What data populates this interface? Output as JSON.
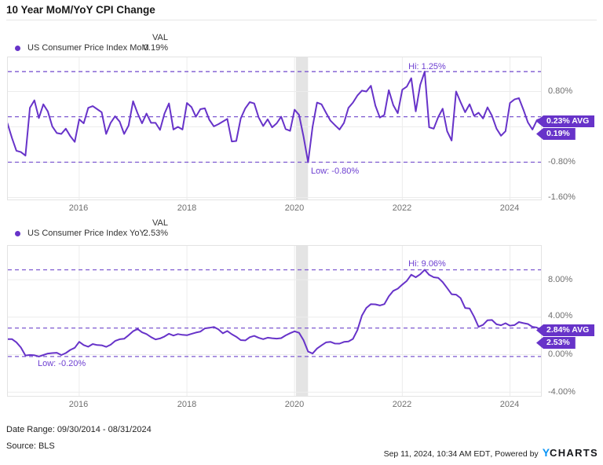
{
  "title": "10 Year MoM/YoY CPI Change",
  "colors": {
    "line": "#6733c9",
    "dashed": "#7d58d0",
    "annotation": "#6d3fd1",
    "badge_bg": "#6733c9",
    "grid": "#ececec",
    "plot_border": "#e3e3e3",
    "recession_band": "#e4e4e4",
    "axis_text": "#6f6f6f",
    "logo_blue": "#0994f6"
  },
  "charts": [
    {
      "val_header": "VAL",
      "legend_label": "US Consumer Price Index MoM",
      "legend_value": "0.19%",
      "hi_label": "Hi: 1.25%",
      "low_label": "Low: -0.80%",
      "avg_badge": "0.23% AVG",
      "value_badge": "0.19%",
      "y_axis_labels": [
        "0.80%",
        "-0.80%",
        "-1.60%"
      ],
      "x_axis_labels": [
        "2016",
        "2018",
        "2020",
        "2022",
        "2024"
      ]
    },
    {
      "val_header": "VAL",
      "legend_label": "US Consumer Price Index YoY",
      "legend_value": "2.53%",
      "hi_label": "Hi: 9.06%",
      "low_label": "Low: -0.20%",
      "avg_badge": "2.84% AVG",
      "value_badge": "2.53%",
      "y_axis_labels": [
        "8.00%",
        "4.00%",
        "0.00%",
        "-4.00%"
      ],
      "x_axis_labels": [
        "2016",
        "2018",
        "2020",
        "2022",
        "2024"
      ]
    }
  ],
  "footer": {
    "date_range": "Date Range: 09/30/2014 - 08/31/2024",
    "source": "Source: BLS",
    "timestamp": "Sep 11, 2024, 10:34 AM EDT",
    "powered_by": "Powered by",
    "logo_y": "Y",
    "logo_charts": "CHARTS"
  },
  "chart_data": [
    {
      "type": "line",
      "title": "US Consumer Price Index MoM",
      "unit": "%",
      "frequency": "monthly",
      "x_start": "2014-09",
      "x_end": "2024-08",
      "hi": 1.25,
      "low": -0.8,
      "avg": 0.23,
      "last": 0.19,
      "ylim": [
        -1.653,
        1.582
      ],
      "y_gridlines": [
        0.8,
        0,
        -0.8,
        -1.6
      ],
      "x_gridline_years": [
        2016,
        2018,
        2020,
        2022,
        2024
      ],
      "recession_band": {
        "from": "2020-02",
        "to": "2020-04"
      },
      "values": [
        0.08,
        -0.25,
        -0.54,
        -0.57,
        -0.65,
        0.43,
        0.6,
        0.2,
        0.51,
        0.35,
        0.01,
        -0.14,
        -0.16,
        -0.04,
        -0.21,
        -0.34,
        0.17,
        0.08,
        0.43,
        0.47,
        0.4,
        0.33,
        -0.16,
        0.09,
        0.24,
        0.12,
        -0.16,
        0.03,
        0.58,
        0.31,
        0.08,
        0.3,
        0.09,
        0.09,
        -0.07,
        0.3,
        0.53,
        -0.06,
        0.0,
        -0.06,
        0.54,
        0.45,
        0.23,
        0.4,
        0.42,
        0.16,
        0.01,
        0.06,
        0.12,
        0.18,
        -0.33,
        -0.32,
        0.19,
        0.42,
        0.56,
        0.53,
        0.21,
        0.02,
        0.17,
        -0.01,
        0.08,
        0.23,
        -0.05,
        -0.09,
        0.39,
        0.27,
        -0.22,
        -0.8,
        0.0,
        0.55,
        0.51,
        0.32,
        0.14,
        0.04,
        -0.06,
        0.09,
        0.43,
        0.55,
        0.71,
        0.82,
        0.8,
        0.93,
        0.48,
        0.21,
        0.27,
        0.83,
        0.49,
        0.31,
        0.84,
        0.91,
        1.1,
        0.35,
        0.95,
        1.25,
        -0.01,
        -0.04,
        0.22,
        0.41,
        -0.1,
        -0.31,
        0.8,
        0.56,
        0.33,
        0.51,
        0.25,
        0.32,
        0.19,
        0.44,
        0.25,
        -0.04,
        -0.2,
        -0.1,
        0.54,
        0.62,
        0.65,
        0.39,
        0.1,
        -0.06,
        0.15,
        0.19
      ]
    },
    {
      "type": "line",
      "title": "US Consumer Price Index YoY",
      "unit": "%",
      "frequency": "monthly",
      "x_start": "2014-09",
      "x_end": "2024-08",
      "hi": 9.06,
      "low": -0.2,
      "avg": 2.84,
      "last": 2.53,
      "ylim": [
        -4.445,
        11.656
      ],
      "y_gridlines": [
        8,
        4,
        0,
        -4
      ],
      "x_gridline_years": [
        2016,
        2018,
        2020,
        2022,
        2024
      ],
      "recession_band": {
        "from": "2020-02",
        "to": "2020-04"
      },
      "values": [
        1.66,
        1.66,
        1.32,
        0.76,
        -0.09,
        -0.03,
        -0.07,
        -0.2,
        -0.04,
        0.12,
        0.17,
        0.2,
        -0.04,
        0.17,
        0.5,
        0.73,
        1.37,
        1.02,
        0.85,
        1.13,
        1.02,
        1.0,
        0.83,
        1.06,
        1.46,
        1.64,
        1.69,
        2.07,
        2.5,
        2.74,
        2.38,
        2.2,
        1.87,
        1.63,
        1.73,
        1.94,
        2.23,
        2.04,
        2.2,
        2.11,
        2.07,
        2.21,
        2.36,
        2.46,
        2.8,
        2.87,
        2.95,
        2.7,
        2.28,
        2.52,
        2.18,
        1.91,
        1.55,
        1.52,
        1.86,
        2.0,
        1.79,
        1.65,
        1.81,
        1.75,
        1.71,
        1.76,
        2.05,
        2.29,
        2.49,
        2.33,
        1.54,
        0.33,
        0.12,
        0.65,
        0.99,
        1.31,
        1.37,
        1.18,
        1.17,
        1.36,
        1.4,
        1.68,
        2.62,
        4.16,
        4.99,
        5.39,
        5.37,
        5.25,
        5.39,
        6.22,
        6.81,
        7.04,
        7.48,
        7.87,
        8.54,
        8.26,
        8.58,
        9.06,
        8.52,
        8.26,
        8.2,
        7.75,
        7.11,
        6.45,
        6.41,
        6.04,
        4.98,
        4.93,
        4.05,
        2.97,
        3.18,
        3.67,
        3.7,
        3.24,
        3.14,
        3.35,
        3.09,
        3.15,
        3.48,
        3.36,
        3.27,
        2.97,
        2.89,
        2.53
      ]
    }
  ]
}
